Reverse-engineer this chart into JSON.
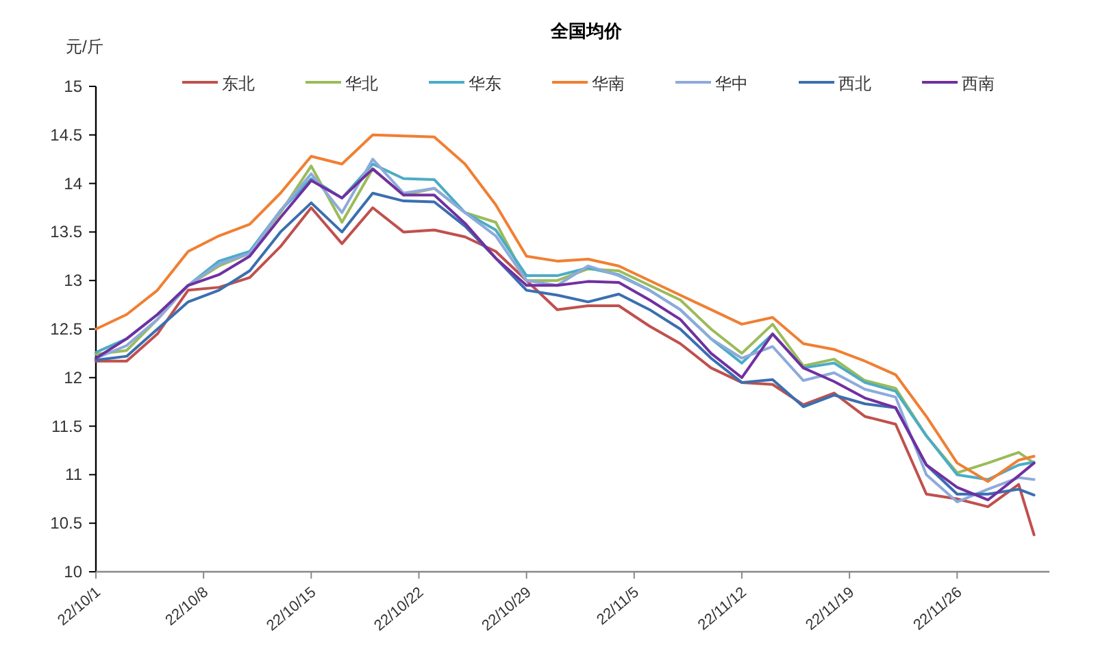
{
  "chart_data": {
    "type": "line",
    "title": "全国均价",
    "ylabel": "元/斤",
    "x": [
      "--10-01",
      "--10-03",
      "--10-05",
      "--10-07",
      "--10-09",
      "--10-11",
      "--10-13",
      "--10-15",
      "--10-17",
      "--10-19",
      "--10-21",
      "--10-23",
      "--10-25",
      "--10-27",
      "--10-29",
      "--10-31",
      "--11-02",
      "--11-04",
      "--11-06",
      "--11-08",
      "--11-10",
      "--11-12",
      "--11-14",
      "--11-16",
      "--11-18",
      "--11-20",
      "--11-22",
      "--11-24",
      "--11-26",
      "--11-28",
      "--11-30",
      "--12-01"
    ],
    "series": [
      {
        "name": "东北",
        "color": "#c0504d",
        "values": [
          12.17,
          12.17,
          12.45,
          12.9,
          12.93,
          13.03,
          13.35,
          13.75,
          13.38,
          13.75,
          13.5,
          13.52,
          13.45,
          13.3,
          13.0,
          12.7,
          12.74,
          12.74,
          12.53,
          12.35,
          12.1,
          11.95,
          11.93,
          11.72,
          11.84,
          11.6,
          11.52,
          10.8,
          10.75,
          10.67,
          10.9,
          10.38
        ]
      },
      {
        "name": "华北",
        "color": "#9bbb59",
        "values": [
          12.24,
          12.28,
          12.6,
          12.95,
          13.15,
          13.28,
          13.7,
          14.18,
          13.6,
          14.15,
          13.88,
          13.95,
          13.7,
          13.6,
          13.0,
          13.0,
          13.12,
          13.1,
          12.95,
          12.8,
          12.5,
          12.25,
          12.55,
          12.12,
          12.19,
          11.97,
          11.89,
          11.4,
          11.02,
          11.12,
          11.23,
          11.12
        ]
      },
      {
        "name": "华东",
        "color": "#4bacc6",
        "values": [
          12.26,
          12.4,
          12.65,
          12.95,
          13.2,
          13.3,
          13.72,
          14.05,
          13.85,
          14.2,
          14.05,
          14.04,
          13.7,
          13.52,
          13.05,
          13.05,
          13.13,
          13.06,
          12.9,
          12.7,
          12.4,
          12.15,
          12.45,
          12.1,
          12.15,
          11.95,
          11.86,
          11.4,
          11.0,
          10.95,
          11.1,
          11.13
        ]
      },
      {
        "name": "华南",
        "color": "#f07f32",
        "values": [
          12.5,
          12.65,
          12.9,
          13.3,
          13.46,
          13.58,
          13.9,
          14.28,
          14.2,
          14.5,
          14.49,
          14.48,
          14.2,
          13.78,
          13.25,
          13.2,
          13.22,
          13.15,
          13.0,
          12.85,
          12.7,
          12.55,
          12.62,
          12.35,
          12.29,
          12.17,
          12.03,
          11.6,
          11.12,
          10.93,
          11.15,
          11.19
        ]
      },
      {
        "name": "华中",
        "color": "#8eaadb",
        "values": [
          12.2,
          12.33,
          12.6,
          12.95,
          13.17,
          13.28,
          13.72,
          14.1,
          13.7,
          14.25,
          13.9,
          13.95,
          13.7,
          13.46,
          13.0,
          12.95,
          13.15,
          13.05,
          12.9,
          12.7,
          12.4,
          12.2,
          12.32,
          11.97,
          12.05,
          11.88,
          11.8,
          11.0,
          10.72,
          10.85,
          10.97,
          10.95
        ]
      },
      {
        "name": "西北",
        "color": "#3a6fb0",
        "values": [
          12.18,
          12.22,
          12.5,
          12.78,
          12.9,
          13.1,
          13.5,
          13.8,
          13.5,
          13.9,
          13.82,
          13.81,
          13.56,
          13.23,
          12.9,
          12.85,
          12.78,
          12.86,
          12.7,
          12.5,
          12.2,
          11.95,
          11.98,
          11.7,
          11.82,
          11.73,
          11.69,
          11.1,
          10.8,
          10.8,
          10.85,
          10.79
        ]
      },
      {
        "name": "西南",
        "color": "#7030a0",
        "values": [
          12.2,
          12.4,
          12.65,
          12.95,
          13.06,
          13.25,
          13.65,
          14.03,
          13.85,
          14.15,
          13.88,
          13.88,
          13.59,
          13.23,
          12.95,
          12.95,
          12.99,
          12.98,
          12.8,
          12.6,
          12.25,
          12.0,
          12.45,
          12.1,
          11.96,
          11.79,
          11.69,
          11.1,
          10.87,
          10.74,
          10.99,
          11.12
        ]
      }
    ],
    "xlim": [
      "--10-01",
      "--12-02"
    ],
    "xticks": [
      {
        "value": "--10-01",
        "label": "22/10/1"
      },
      {
        "value": "--10-08",
        "label": "22/10/8"
      },
      {
        "value": "--10-15",
        "label": "22/10/15"
      },
      {
        "value": "--10-22",
        "label": "22/10/22"
      },
      {
        "value": "--10-29",
        "label": "22/10/29"
      },
      {
        "value": "--11-05",
        "label": "22/11/5"
      },
      {
        "value": "--11-12",
        "label": "22/11/12"
      },
      {
        "value": "--11-19",
        "label": "22/11/19"
      },
      {
        "value": "--11-26",
        "label": "22/11/26"
      }
    ],
    "ylim": [
      10,
      15
    ],
    "yticks": [
      10,
      10.5,
      11,
      11.5,
      12,
      12.5,
      13,
      13.5,
      14,
      14.5,
      15
    ],
    "grid": false,
    "legend": "top",
    "marker": "none",
    "line_style": "solid"
  }
}
